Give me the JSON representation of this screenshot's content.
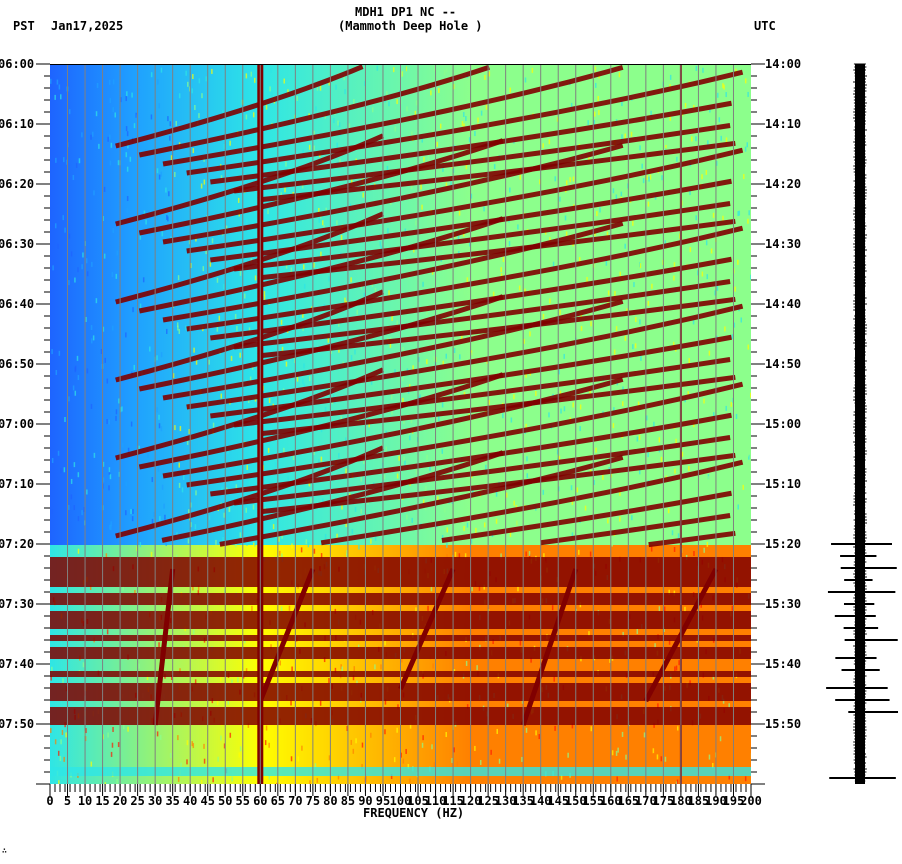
{
  "header": {
    "station_line": "MDH1 DP1 NC --",
    "station_name": "(Mammoth Deep Hole )",
    "left_tz": "PST",
    "date": "Jan17,2025",
    "right_tz": "UTC"
  },
  "footer": {
    "mark": "∴"
  },
  "colors": {
    "low": "#1e64ff",
    "blue": "#1fa0ff",
    "cyan": "#2ee6e6",
    "green": "#8cff8c",
    "yellow": "#ffff00",
    "orange": "#ff8000",
    "red": "#ff1a00",
    "darkred": "#800000",
    "gridline": "#808080",
    "trace": "#000000"
  },
  "chart_data": {
    "type": "heatmap",
    "title": "MDH1 DP1 NC -- (Mammoth Deep Hole )",
    "xlabel": "FREQUENCY (HZ)",
    "ylabel_left": "PST",
    "ylabel_right": "UTC",
    "xlim": [
      0,
      200
    ],
    "x_ticks": [
      0,
      5,
      10,
      15,
      20,
      25,
      30,
      35,
      40,
      45,
      50,
      55,
      60,
      65,
      70,
      75,
      80,
      85,
      90,
      95,
      100,
      105,
      110,
      115,
      120,
      125,
      130,
      135,
      140,
      145,
      150,
      155,
      160,
      165,
      170,
      175,
      180,
      185,
      190,
      195,
      200
    ],
    "y_ticks_left": [
      "06:00",
      "06:10",
      "06:20",
      "06:30",
      "06:40",
      "06:50",
      "07:00",
      "07:10",
      "07:20",
      "07:30",
      "07:40",
      "07:50"
    ],
    "y_ticks_right": [
      "14:00",
      "14:10",
      "14:20",
      "14:30",
      "14:40",
      "14:50",
      "15:00",
      "15:10",
      "15:20",
      "15:30",
      "15:40",
      "15:50"
    ],
    "time_range_minutes": 120,
    "persistent_lines_hz": [
      60,
      180
    ],
    "description": "Repeated curved harmonic sweeps 06:00-07:20 PST; broadband high energy 07:20-08:00 with dark-red horizontal bands and diagonal streaks",
    "broadband_bands_minutes": [
      [
        82,
        87
      ],
      [
        88,
        90
      ],
      [
        91,
        94
      ],
      [
        95,
        96
      ],
      [
        97,
        99
      ],
      [
        101,
        102
      ],
      [
        103,
        106
      ],
      [
        107,
        110
      ]
    ],
    "colormap": [
      "blue",
      "cyan",
      "green",
      "yellow",
      "orange",
      "red",
      "darkred"
    ]
  },
  "seismogram": {
    "label": "trace",
    "bursts_minutes": [
      80,
      82,
      84,
      86,
      88,
      90,
      92,
      94,
      96,
      99,
      101,
      104,
      106,
      108,
      119
    ]
  }
}
